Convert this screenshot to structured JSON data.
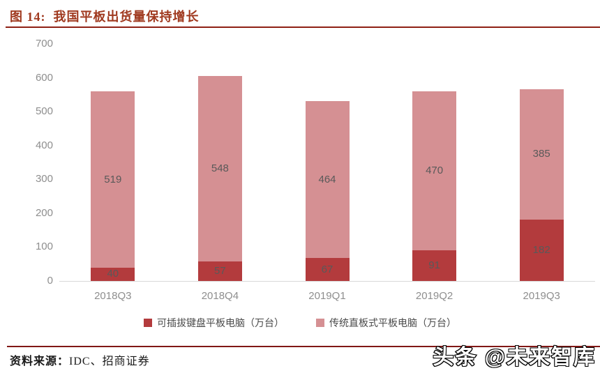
{
  "header": {
    "title": "图 14:  我国平板出货量保持增长"
  },
  "chart_data": {
    "type": "bar",
    "stacked": true,
    "title": "我国平板出货量保持增长",
    "categories": [
      "2018Q3",
      "2018Q4",
      "2019Q1",
      "2019Q2",
      "2019Q3"
    ],
    "series": [
      {
        "name": "可插拔键盘平板电脑（万台）",
        "color": "#b33b3d",
        "values": [
          40,
          57,
          67,
          91,
          182
        ]
      },
      {
        "name": "传统直板式平板电脑（万台）",
        "color": "#d59093",
        "values": [
          519,
          548,
          464,
          470,
          385
        ]
      }
    ],
    "ylim": [
      0,
      700
    ],
    "yticks": [
      0,
      100,
      200,
      300,
      400,
      500,
      600,
      700
    ],
    "grid": false,
    "legend_position": "bottom",
    "data_label_color": "#595959",
    "axis_label_color": "#8e8e8e",
    "axis_line_color": "#d9d9d9"
  },
  "footer": {
    "source_prefix": "资料来源：",
    "source_text": "IDC、招商证券",
    "watermark": "头条 @未来智库"
  }
}
